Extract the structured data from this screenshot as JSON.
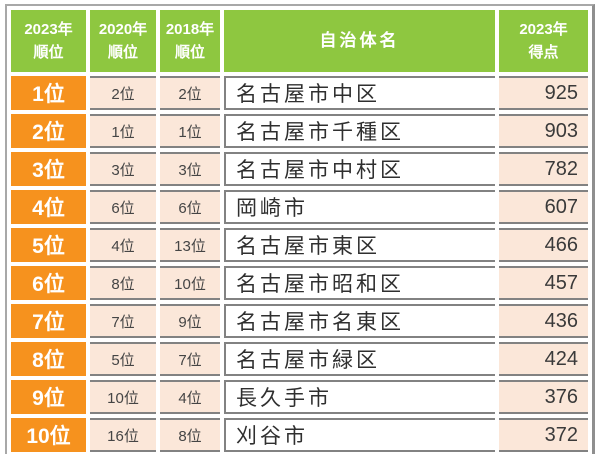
{
  "colors": {
    "header_green": "#8EC740",
    "rank_orange": "#F6921E",
    "cell_peach": "#FBE7D9",
    "frame_gray": "#A8A8A8",
    "gridline_gray": "#828282",
    "text_dark": "#3A3A3A",
    "text_white": "#FFFFFF"
  },
  "header_lines": [
    "2023年\n順位",
    "2020年\n順位",
    "2018年\n順位",
    "自治体名",
    "2023年\n得点"
  ],
  "chart_data": {
    "type": "table",
    "columns": [
      "2023年順位",
      "2020年順位",
      "2018年順位",
      "自治体名",
      "2023年得点"
    ],
    "rows": [
      [
        "1位",
        "2位",
        "2位",
        "名古屋市中区",
        "925"
      ],
      [
        "2位",
        "1位",
        "1位",
        "名古屋市千種区",
        "903"
      ],
      [
        "3位",
        "3位",
        "3位",
        "名古屋市中村区",
        "782"
      ],
      [
        "4位",
        "6位",
        "6位",
        "岡崎市",
        "607"
      ],
      [
        "5位",
        "4位",
        "13位",
        "名古屋市東区",
        "466"
      ],
      [
        "6位",
        "8位",
        "10位",
        "名古屋市昭和区",
        "457"
      ],
      [
        "7位",
        "7位",
        "9位",
        "名古屋市名東区",
        "436"
      ],
      [
        "8位",
        "5位",
        "7位",
        "名古屋市緑区",
        "424"
      ],
      [
        "9位",
        "10位",
        "4位",
        "長久手市",
        "376"
      ],
      [
        "10位",
        "16位",
        "8位",
        "刈谷市",
        "372"
      ]
    ]
  }
}
